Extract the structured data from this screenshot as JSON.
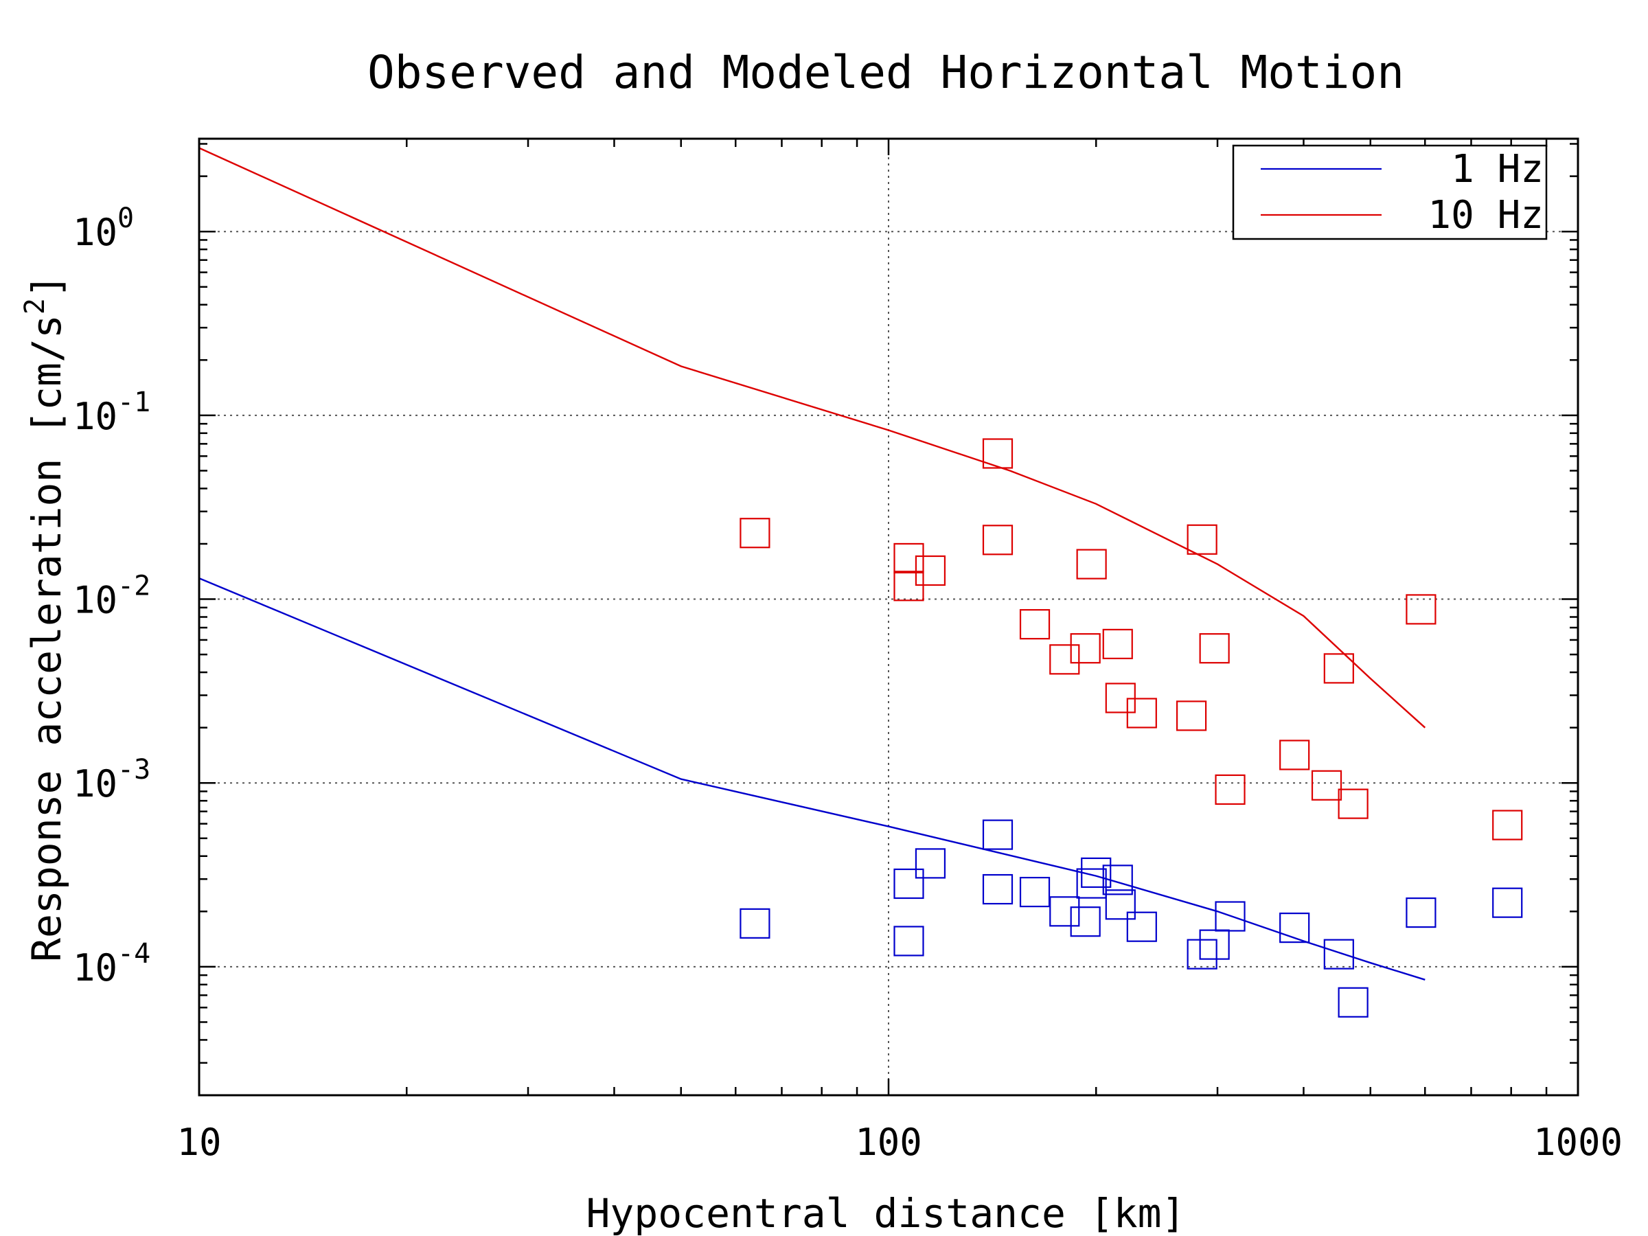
{
  "chart_data": {
    "type": "scatter",
    "title": "Observed and Modeled Horizontal Motion",
    "xlabel": "Hypocentral distance [km]",
    "ylabel": "Response acceleration [cm/s",
    "ylabel_superscript": "2",
    "ylabel_close": "]",
    "xscale": "log",
    "yscale": "log",
    "xlim": [
      10,
      1000
    ],
    "ylim": [
      2e-05,
      3.2
    ],
    "grid": true,
    "legend_position": "top-right",
    "x_ticks": [
      {
        "value": 10,
        "label": "10"
      },
      {
        "value": 100,
        "label": "100"
      },
      {
        "value": 1000,
        "label": "1000"
      }
    ],
    "y_ticks": [
      {
        "value": 1,
        "base": "10",
        "exp": "0"
      },
      {
        "value": 0.1,
        "base": "10",
        "exp": "-1"
      },
      {
        "value": 0.01,
        "base": "10",
        "exp": "-2"
      },
      {
        "value": 0.001,
        "base": "10",
        "exp": "-3"
      },
      {
        "value": 0.0001,
        "base": "10",
        "exp": "-4"
      }
    ],
    "series": [
      {
        "name": "1 Hz",
        "color": "#0000cc",
        "line": {
          "x": [
            10,
            50,
            100,
            200,
            300,
            400,
            500,
            600
          ],
          "y": [
            0.013,
            0.00105,
            0.00058,
            0.000312,
            0.0002,
            0.000138,
            0.000105,
            8.5e-05
          ]
        },
        "points": {
          "x": [
            64,
            107,
            107,
            115,
            144,
            144,
            163,
            180,
            193,
            197,
            200,
            215,
            217,
            233,
            285,
            297,
            313,
            388,
            450,
            472,
            592,
            790
          ],
          "y": [
            0.000172,
            0.000283,
            0.000138,
            0.000365,
            0.000523,
            0.000264,
            0.000255,
            0.0002,
            0.000176,
            0.000284,
            0.000325,
            0.000297,
            0.000218,
            0.000165,
            0.000117,
            0.000132,
            0.000188,
            0.000163,
            0.000117,
            6.4e-05,
            0.000197,
            0.000223
          ]
        }
      },
      {
        "name": "10 Hz",
        "color": "#dd0000",
        "line": {
          "x": [
            10,
            50,
            100,
            150,
            200,
            300,
            400,
            500,
            600
          ],
          "y": [
            2.85,
            0.185,
            0.083,
            0.05,
            0.033,
            0.0155,
            0.0081,
            0.0037,
            0.002
          ]
        },
        "points": {
          "x": [
            64,
            107,
            107,
            115,
            144,
            144,
            163,
            180,
            193,
            197,
            215,
            217,
            233,
            275,
            285,
            297,
            313,
            388,
            432,
            472,
            450,
            592,
            790
          ],
          "y": [
            0.0229,
            0.0167,
            0.0118,
            0.0143,
            0.062,
            0.021,
            0.0073,
            0.0047,
            0.0054,
            0.0155,
            0.0057,
            0.0029,
            0.0024,
            0.00232,
            0.0211,
            0.0054,
            0.00092,
            0.00142,
            0.00097,
            0.00077,
            0.0042,
            0.0088,
            0.00059
          ]
        }
      }
    ]
  }
}
